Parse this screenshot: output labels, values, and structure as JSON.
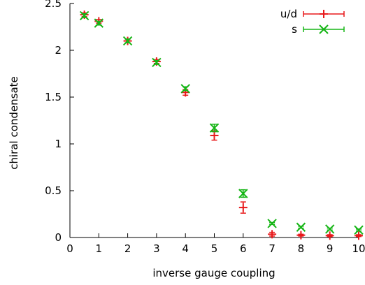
{
  "chart_data": {
    "type": "scatter",
    "xlabel": "inverse gauge coupling",
    "ylabel": "chiral condensate",
    "xlim": [
      0,
      10
    ],
    "ylim": [
      0,
      2.5
    ],
    "xticks": [
      0,
      1,
      2,
      3,
      4,
      5,
      6,
      7,
      8,
      9,
      10
    ],
    "xtick_labels": [
      "0",
      "1",
      "2",
      "3",
      "4",
      "5",
      "6",
      "7",
      "8",
      "9",
      "10"
    ],
    "yticks": [
      0,
      0.5,
      1,
      1.5,
      2,
      2.5
    ],
    "ytick_labels": [
      "0",
      "0.5",
      "1",
      "1.5",
      "2",
      "2.5"
    ],
    "grid": false,
    "legend_position": "top-right",
    "series": [
      {
        "name": "u/d",
        "marker": "plus",
        "color": "#e8191b",
        "x": [
          0.5,
          1,
          2,
          3,
          4,
          5,
          6,
          7,
          8,
          9,
          10
        ],
        "y": [
          2.38,
          2.31,
          2.1,
          1.88,
          1.55,
          1.09,
          0.32,
          0.035,
          0.025,
          0.02,
          0.02
        ],
        "err": [
          0.02,
          0.02,
          0.02,
          0.02,
          0.03,
          0.05,
          0.06,
          0.02,
          0.01,
          0.01,
          0.01
        ]
      },
      {
        "name": "s",
        "marker": "cross",
        "color": "#16b516",
        "x": [
          0.5,
          1,
          2,
          3,
          4,
          5,
          6,
          7,
          8,
          9,
          10
        ],
        "y": [
          2.37,
          2.29,
          2.1,
          1.87,
          1.59,
          1.17,
          0.47,
          0.15,
          0.11,
          0.09,
          0.08
        ],
        "err": [
          0.02,
          0.02,
          0.02,
          0.02,
          0.02,
          0.04,
          0.04,
          0.01,
          0.01,
          0.01,
          0.01
        ]
      }
    ]
  }
}
